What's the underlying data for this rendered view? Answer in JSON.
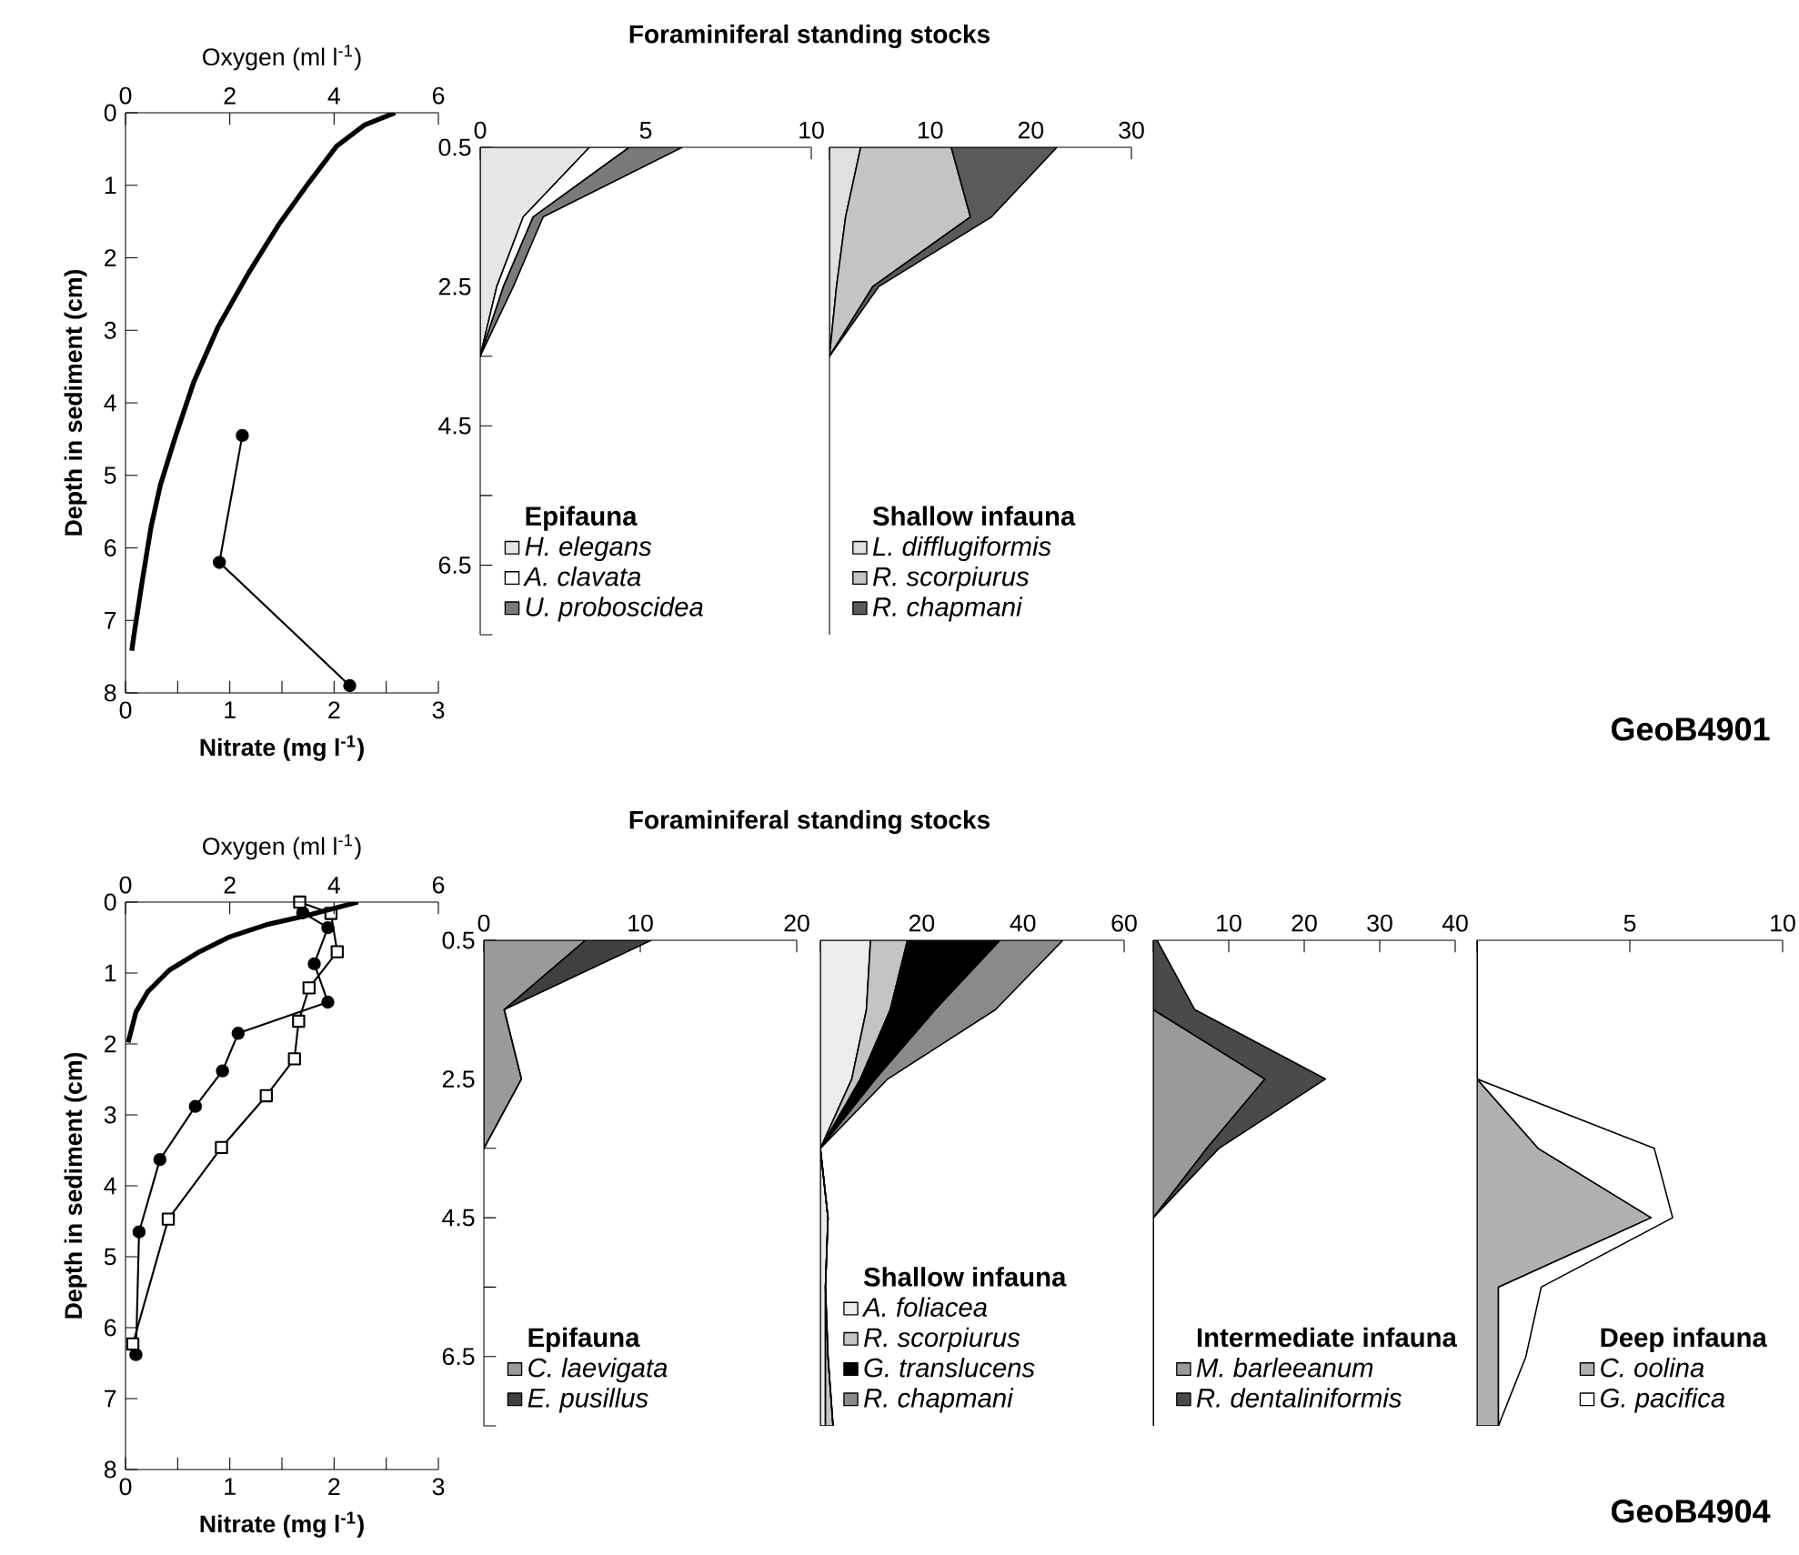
{
  "chart_data": [
    {
      "type": "line",
      "xlabel": "Nitrate (mg l$^{-1}$)",
      "x2label": "Oxygen (ml l$^{-1}$)",
      "ylabel": "Depth in sediment (cm)",
      "xlim": [
        0,
        3
      ],
      "xticks": [
        0,
        {
          "value": 0.5,
          "label": null
        },
        1,
        {
          "value": 1.5,
          "label": null
        },
        2,
        {
          "value": 2.5,
          "label": null
        },
        3
      ],
      "x2lim": [
        0,
        6
      ],
      "x2ticks": [
        0,
        2,
        4,
        6
      ],
      "ylim": [
        8,
        0
      ],
      "yticks": [
        0,
        1,
        2,
        3,
        4,
        5,
        6,
        7,
        8
      ],
      "series": [
        {
          "axis": "x2",
          "color": "#000000",
          "marker": "none",
          "x": [
            5.17,
            4.58,
            4.05,
            3.52,
            2.94,
            2.36,
            1.77,
            1.31,
            0.96,
            0.67,
            0.49,
            0.32,
            0.16,
            0.12
          ],
          "values": [
            0,
            0.17,
            0.46,
            0.96,
            1.54,
            2.21,
            2.96,
            3.71,
            4.46,
            5.13,
            5.71,
            6.46,
            7.21,
            7.42
          ]
        },
        {
          "color": "#000000",
          "marker": "circle",
          "x": [
            1.12,
            0.9,
            2.15
          ],
          "values": [
            4.45,
            6.2,
            7.9
          ]
        }
      ]
    },
    {
      "type": "area",
      "orientation": "horizontal",
      "stacked": true,
      "title": "Foraminiferal standing stocks",
      "legend": "bottom left",
      "legend_title": "Epifauna",
      "xlim": [
        0,
        10
      ],
      "xticks": [
        0,
        5,
        10
      ],
      "ylim": [
        7.5,
        0.5
      ],
      "yticks": [
        0.5,
        {
          "value": 1.5,
          "label": null
        },
        2.5,
        {
          "value": 3.5,
          "label": null
        },
        4.5,
        {
          "value": 5.5,
          "label": null
        },
        6.5,
        {
          "value": 7.5,
          "label": null
        }
      ],
      "x": [
        0.5,
        1.5,
        2.5,
        3.5
      ],
      "series": [
        {
          "name": "H. elegans",
          "color": "#e6e6e6",
          "values": [
            3.3,
            1.3,
            0.5,
            0
          ]
        },
        {
          "name": "A. clavata",
          "color": "#ffffff",
          "values": [
            1.2,
            0.3,
            0.2,
            0
          ]
        },
        {
          "name": "U. proboscidea",
          "color": "#7a7a7a",
          "values": [
            1.6,
            0.3,
            0.3,
            0
          ]
        }
      ]
    },
    {
      "type": "area",
      "orientation": "horizontal",
      "stacked": true,
      "tick_labels": "x",
      "legend": "bottom left",
      "legend_title": "Shallow infauna",
      "annotations": [
        "GeoB4901"
      ],
      "xlim": [
        0,
        30
      ],
      "xticks": [
        {
          "value": 0,
          "label": null
        },
        10,
        20,
        30
      ],
      "ylim": [
        7.5,
        0.5
      ],
      "x": [
        0.5,
        1.5,
        2.5,
        3.5
      ],
      "series": [
        {
          "name": "L. difflugiformis",
          "color": "#e0e0e0",
          "values": [
            3.1,
            1.6,
            0.7,
            0
          ]
        },
        {
          "name": "R. scorpiurus",
          "color": "#c4c4c4",
          "values": [
            9.0,
            12.4,
            3.6,
            0
          ]
        },
        {
          "name": "R. chapmani",
          "color": "#5a5a5a",
          "values": [
            10.5,
            2.1,
            0.6,
            0
          ]
        }
      ]
    },
    {
      "type": "line",
      "xlabel": "Nitrate (mg l$^{-1}$)",
      "x2label": "Oxygen (ml l$^{-1}$)",
      "ylabel": "Depth in sediment (cm)",
      "xlim": [
        0,
        3
      ],
      "xticks": [
        0,
        {
          "value": 0.5,
          "label": null
        },
        1,
        {
          "value": 1.5,
          "label": null
        },
        2,
        {
          "value": 2.5,
          "label": null
        },
        3
      ],
      "x2lim": [
        0,
        6
      ],
      "x2ticks": [
        0,
        2,
        4,
        6
      ],
      "ylim": [
        8,
        0
      ],
      "yticks": [
        0,
        1,
        2,
        3,
        4,
        5,
        6,
        7,
        8
      ],
      "series": [
        {
          "axis": "x2",
          "color": "#000000",
          "marker": "none",
          "x": [
            4.46,
            3.47,
            2.7,
            2.0,
            1.42,
            0.84,
            0.43,
            0.2,
            0.05
          ],
          "values": [
            0,
            0.19,
            0.32,
            0.49,
            0.7,
            0.96,
            1.26,
            1.55,
            1.98
          ]
        },
        {
          "color": "#000000",
          "marker": "circle",
          "x": [
            1.7,
            1.94,
            1.81,
            1.94,
            1.08,
            0.93,
            0.67,
            0.33,
            0.13,
            0.1
          ],
          "values": [
            0.15,
            0.36,
            0.87,
            1.41,
            1.85,
            2.38,
            2.88,
            3.63,
            4.65,
            6.38
          ]
        },
        {
          "color": "#000000",
          "marker": "square",
          "x": [
            1.67,
            1.97,
            2.03,
            1.76,
            1.66,
            1.62,
            1.35,
            0.92,
            0.41,
            0.07
          ],
          "values": [
            0,
            0.16,
            0.7,
            1.21,
            1.68,
            2.21,
            2.73,
            3.46,
            4.47,
            6.23
          ]
        }
      ]
    },
    {
      "type": "area",
      "orientation": "horizontal",
      "stacked": true,
      "title": "Foraminiferal standing stocks",
      "legend": "bottom left",
      "legend_title": "Epifauna",
      "xlim": [
        0,
        20
      ],
      "xticks": [
        0,
        10,
        20
      ],
      "ylim": [
        7.5,
        0.5
      ],
      "yticks": [
        0.5,
        {
          "value": 1.5,
          "label": null
        },
        2.5,
        {
          "value": 3.5,
          "label": null
        },
        4.5,
        {
          "value": 5.5,
          "label": null
        },
        6.5,
        {
          "value": 7.5,
          "label": null
        }
      ],
      "x": [
        0.5,
        1.5,
        2.5,
        3.5
      ],
      "series": [
        {
          "name": "C. laevigata",
          "color": "#9a9a9a",
          "values": [
            6.5,
            1.3,
            2.4,
            0
          ]
        },
        {
          "name": "E. pusillus",
          "color": "#404040",
          "values": [
            4.2,
            0,
            0,
            0
          ]
        }
      ]
    },
    {
      "type": "area",
      "orientation": "horizontal",
      "stacked": true,
      "tick_labels": "x",
      "legend": "bottom left",
      "legend_title": "Shallow infauna",
      "xlim": [
        0,
        60
      ],
      "xticks": [
        {
          "value": 0,
          "label": null
        },
        20,
        40,
        60
      ],
      "ylim": [
        7.5,
        0.5
      ],
      "x": [
        0.5,
        1.5,
        2.5,
        3.5,
        4.5,
        5.5,
        6.5,
        7.5
      ],
      "series": [
        {
          "name": "A. foliacea",
          "color": "#ececec",
          "values": [
            9.9,
            9.1,
            6.2,
            0,
            1.5,
            1.0,
            1.0,
            1.0
          ]
        },
        {
          "name": "R. scorpiurus",
          "color": "#c4c4c4",
          "values": [
            7.3,
            4.7,
            1.7,
            0,
            0,
            0,
            0.5,
            1.5
          ]
        },
        {
          "name": "G. translucens",
          "color": "#000000",
          "values": [
            18.3,
            8.9,
            3.0,
            0,
            0,
            0,
            0,
            0
          ]
        },
        {
          "name": "R. chapmani",
          "color": "#8a8a8a",
          "values": [
            12.4,
            11.9,
            2.4,
            0,
            0,
            0,
            0,
            0
          ]
        }
      ]
    },
    {
      "type": "area",
      "orientation": "horizontal",
      "stacked": true,
      "tick_labels": "x",
      "legend": "bottom left",
      "legend_title": "Intermediate infauna",
      "xlim": [
        0,
        40
      ],
      "xticks": [
        {
          "value": 0,
          "label": null
        },
        10,
        20,
        30,
        40
      ],
      "ylim": [
        7.5,
        0.5
      ],
      "x": [
        0.5,
        1.5,
        2.5,
        3.5,
        4.5,
        5.5,
        6.5,
        7.5
      ],
      "series": [
        {
          "name": "M. barleeanum",
          "color": "#9a9a9a",
          "values": [
            0,
            0,
            14.8,
            7.1,
            0,
            0,
            0,
            0
          ]
        },
        {
          "name": "R. dentaliniformis",
          "color": "#4a4a4a",
          "values": [
            0.5,
            5.5,
            8.0,
            1.6,
            0,
            0,
            0,
            0
          ]
        }
      ]
    },
    {
      "type": "area",
      "orientation": "horizontal",
      "stacked": true,
      "tick_labels": "x",
      "legend": "bottom right",
      "legend_title": "Deep infauna",
      "annotations": [
        "GeoB4904"
      ],
      "xlim": [
        0,
        10
      ],
      "xticks": [
        {
          "value": 0,
          "label": null
        },
        5,
        10
      ],
      "ylim": [
        7.5,
        0.5
      ],
      "x": [
        0.5,
        1.5,
        2.5,
        3.5,
        4.5,
        5.5,
        6.5,
        7.5
      ],
      "series": [
        {
          "name": "C. oolina",
          "color": "#b0b0b0",
          "values": [
            0,
            0,
            0,
            2.0,
            5.7,
            0.7,
            0.7,
            0.7
          ]
        },
        {
          "name": "G. pacifica",
          "color": "#ffffff",
          "values": [
            0,
            0,
            0,
            3.8,
            0.7,
            1.4,
            0.9,
            0
          ]
        }
      ]
    }
  ]
}
